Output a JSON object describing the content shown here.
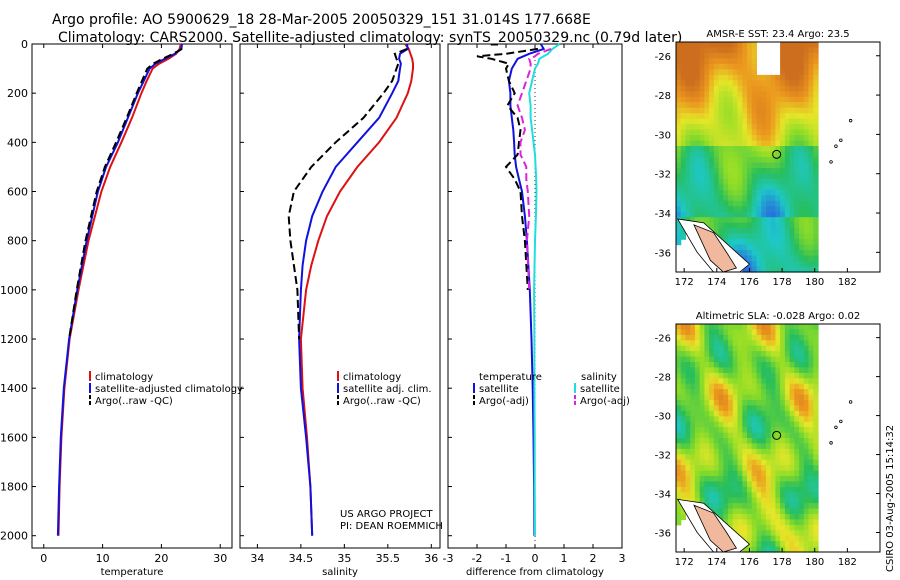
{
  "header": {
    "line1": "Argo profile: AO 5900629_18 28-Mar-2005 20050329_151 31.014S 177.668E",
    "line2": "Climatology: CARS2000. Satellite-adjusted climatology: synTS_20050329.nc (0.79d later)"
  },
  "side_text": "CSIRO 03-Aug-2005 15:14:32",
  "credit": {
    "line1": "US ARGO PROJECT",
    "line2": "PI: DEAN ROEMMICH"
  },
  "colors": {
    "climatology": "#dd1111",
    "satellite": "#1111dd",
    "argo": "#000000",
    "sal_satellite": "#22dddd",
    "sal_argo": "#dd22dd"
  },
  "chart_data": [
    {
      "type": "line",
      "xlabel": "temperature",
      "xlim": [
        -2,
        32
      ],
      "ylim": [
        2050,
        0
      ],
      "xticks": [
        0,
        10,
        20,
        30
      ],
      "yticks": [
        0,
        200,
        400,
        600,
        800,
        1000,
        1200,
        1400,
        1600,
        1800,
        2000
      ],
      "depth": [
        0,
        20,
        40,
        60,
        80,
        100,
        150,
        200,
        300,
        400,
        500,
        600,
        800,
        1000,
        1200,
        1400,
        1600,
        1800,
        2000
      ],
      "legend": [
        "climatology",
        "satellite-adjusted climatology",
        "Argo(..raw -QC)"
      ],
      "series": [
        {
          "name": "climatology",
          "style": "solid",
          "color": "red",
          "values": [
            23.3,
            23.1,
            22.5,
            21.2,
            19.6,
            18.5,
            17.5,
            16.6,
            15.0,
            13.2,
            11.3,
            9.8,
            7.6,
            5.9,
            4.4,
            3.5,
            3.0,
            2.7,
            2.5
          ]
        },
        {
          "name": "satellite-adjusted climatology",
          "style": "solid",
          "color": "blue",
          "values": [
            23.5,
            23.4,
            22.3,
            20.6,
            19.0,
            18.0,
            17.0,
            16.0,
            14.3,
            12.6,
            10.6,
            9.2,
            7.3,
            5.7,
            4.3,
            3.4,
            2.9,
            2.6,
            2.4
          ]
        },
        {
          "name": "Argo(..raw -QC)",
          "style": "dash",
          "color": "black",
          "values": [
            null,
            23.5,
            22.0,
            20.2,
            18.6,
            17.6,
            16.7,
            15.8,
            14.1,
            12.3,
            10.4,
            9.0,
            7.1,
            5.6,
            4.3,
            null,
            null,
            null,
            null
          ]
        }
      ]
    },
    {
      "type": "line",
      "xlabel": "salinity",
      "xlim": [
        33.8,
        36.1
      ],
      "ylim": [
        2050,
        0
      ],
      "xticks": [
        34,
        34.5,
        35,
        35.5,
        36
      ],
      "depth": [
        0,
        20,
        40,
        60,
        80,
        100,
        150,
        200,
        300,
        400,
        500,
        600,
        700,
        800,
        900,
        1000,
        1200,
        1400,
        1600,
        1800,
        2000
      ],
      "legend": [
        "climatology",
        "satellite adj. clim.",
        "Argo(..raw -QC)"
      ],
      "series": [
        {
          "name": "climatology",
          "style": "solid",
          "color": "red",
          "values": [
            35.7,
            35.74,
            35.76,
            35.78,
            35.79,
            35.79,
            35.77,
            35.73,
            35.6,
            35.4,
            35.15,
            34.95,
            34.8,
            34.7,
            34.62,
            34.56,
            34.5,
            34.52,
            34.57,
            34.61,
            34.63
          ]
        },
        {
          "name": "satellite adj. clim.",
          "style": "solid",
          "color": "blue",
          "values": [
            35.72,
            35.73,
            35.64,
            35.63,
            35.65,
            35.64,
            35.62,
            35.55,
            35.4,
            35.15,
            34.9,
            34.75,
            34.63,
            34.56,
            34.52,
            34.5,
            34.48,
            34.5,
            34.56,
            34.61,
            34.63
          ]
        },
        {
          "name": "Argo(..raw -QC)",
          "style": "dash",
          "color": "black",
          "values": [
            null,
            35.72,
            35.58,
            35.6,
            35.62,
            35.6,
            35.55,
            35.45,
            35.22,
            34.9,
            34.62,
            34.42,
            34.36,
            34.38,
            34.42,
            34.46,
            34.48,
            null,
            null,
            null,
            null
          ]
        }
      ]
    },
    {
      "type": "line",
      "xlabel": "difference from climatology",
      "xlim": [
        -3,
        3
      ],
      "ylim": [
        2050,
        0
      ],
      "xticks": [
        -3,
        -2,
        -1,
        0,
        1,
        2,
        3
      ],
      "depth": [
        0,
        20,
        40,
        50,
        60,
        80,
        100,
        150,
        200,
        250,
        300,
        350,
        400,
        450,
        500,
        550,
        600,
        700,
        800,
        1000,
        1200,
        1400,
        1600,
        1800,
        2000
      ],
      "legend_left": {
        "heading": "temperature",
        "items": [
          "satellite",
          "Argo(-adj)"
        ]
      },
      "legend_right": {
        "heading": "salinity",
        "items": [
          "satellite",
          "Argo(-adj)"
        ]
      },
      "series": [
        {
          "name": "temperature satellite",
          "style": "solid",
          "color": "blue",
          "values": [
            0.2,
            0.3,
            -0.2,
            -0.4,
            -0.6,
            -0.7,
            -0.8,
            -0.9,
            -0.85,
            -0.85,
            -0.8,
            -0.75,
            -0.72,
            -0.7,
            -0.65,
            -0.55,
            -0.45,
            -0.35,
            -0.28,
            -0.18,
            -0.12,
            -0.08,
            -0.05,
            -0.03,
            -0.02
          ]
        },
        {
          "name": "temperature Argo(-adj)",
          "style": "dash",
          "color": "black",
          "values": [
            null,
            0.1,
            -1.0,
            -2.0,
            -1.5,
            -0.9,
            -1.0,
            -0.9,
            -0.7,
            -0.95,
            -0.6,
            -0.5,
            -0.55,
            -0.6,
            -1.0,
            -0.7,
            -0.5,
            -0.45,
            -0.35,
            -0.25,
            null,
            null,
            null,
            null,
            null
          ]
        },
        {
          "name": "salinity satellite",
          "style": "solid",
          "color": "cyan",
          "values": [
            0.85,
            0.6,
            0.45,
            0.3,
            0.15,
            0.1,
            0.0,
            -0.1,
            -0.2,
            -0.15,
            -0.15,
            -0.1,
            -0.05,
            0.0,
            0.02,
            0.04,
            0.05,
            0.03,
            0.0,
            -0.03,
            -0.02,
            -0.02,
            -0.01,
            -0.01,
            0.0
          ]
        },
        {
          "name": "salinity Argo(-adj)",
          "style": "dash",
          "color": "magenta",
          "values": [
            null,
            0.55,
            0.1,
            0.0,
            -0.2,
            -0.15,
            -0.15,
            -0.3,
            -0.45,
            -0.6,
            -0.45,
            -0.35,
            -0.5,
            -0.5,
            -0.3,
            -0.3,
            -0.25,
            -0.2,
            -0.28,
            -0.2,
            null,
            null,
            null,
            null,
            null
          ]
        }
      ]
    },
    {
      "type": "heatmap",
      "title": "AMSR-E SST: 23.4 Argo: 23.5",
      "xticks": [
        172,
        174,
        176,
        178,
        180,
        182
      ],
      "yticks": [
        -26,
        -28,
        -30,
        -32,
        -34,
        -36
      ],
      "xlim": [
        171.5,
        184
      ],
      "ylim": [
        -37,
        -25.3
      ],
      "marker": {
        "lon": 177.668,
        "lat": -31.014
      }
    },
    {
      "type": "heatmap",
      "title": "Altimetric SLA: -0.028 Argo: 0.02",
      "xticks": [
        172,
        174,
        176,
        178,
        180,
        182
      ],
      "yticks": [
        -26,
        -28,
        -30,
        -32,
        -34,
        -36
      ],
      "xlim": [
        171.5,
        184
      ],
      "ylim": [
        -37,
        -25.3
      ],
      "marker": {
        "lon": 177.668,
        "lat": -31.014
      }
    }
  ]
}
